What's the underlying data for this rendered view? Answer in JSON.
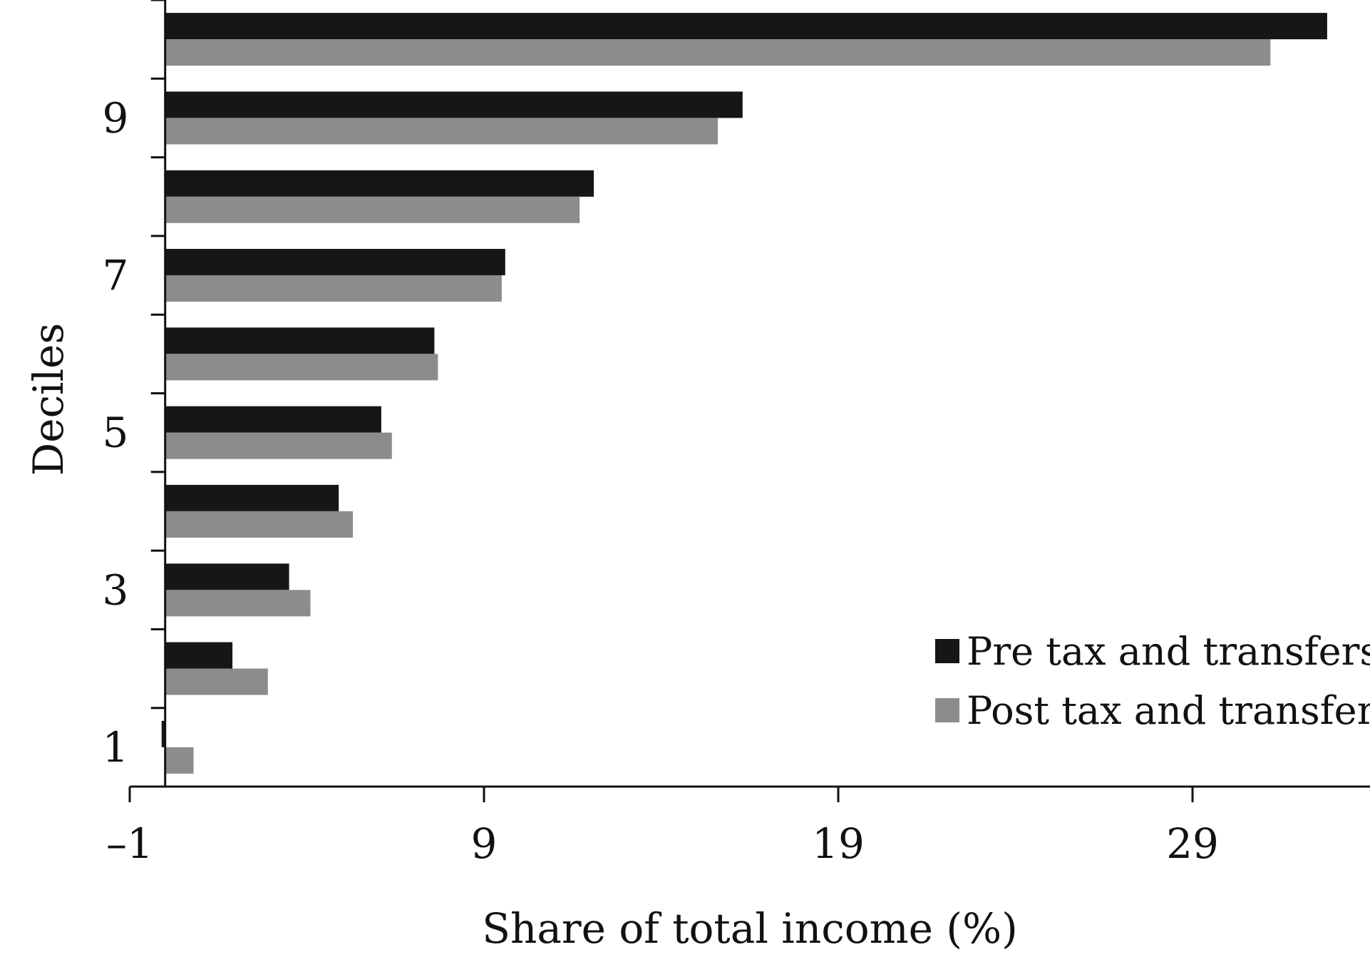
{
  "chart_data": {
    "type": "bar",
    "orientation": "horizontal",
    "categories": [
      "1",
      "2",
      "3",
      "4",
      "5",
      "6",
      "7",
      "8",
      "9",
      "10"
    ],
    "y_tick_labels": [
      "1",
      "3",
      "5",
      "7",
      "9"
    ],
    "x_ticks": [
      -1,
      9,
      19,
      29
    ],
    "x_tick_labels": [
      "–1",
      "9",
      "19",
      "29"
    ],
    "xlim": [
      -1,
      33
    ],
    "xlabel": "Share of total income (%)",
    "ylabel": "Deciles",
    "grid": false,
    "legend_position": "lower-right",
    "series": [
      {
        "name": "Pre tax and transfers",
        "color": "#161616",
        "values": [
          -0.1,
          1.9,
          3.5,
          4.9,
          6.1,
          7.6,
          9.6,
          12.1,
          16.3,
          32.8
        ]
      },
      {
        "name": "Post tax and transfers",
        "color": "#8c8c8c",
        "values": [
          0.8,
          2.9,
          4.1,
          5.3,
          6.4,
          7.7,
          9.5,
          11.7,
          15.6,
          31.2
        ]
      }
    ]
  }
}
